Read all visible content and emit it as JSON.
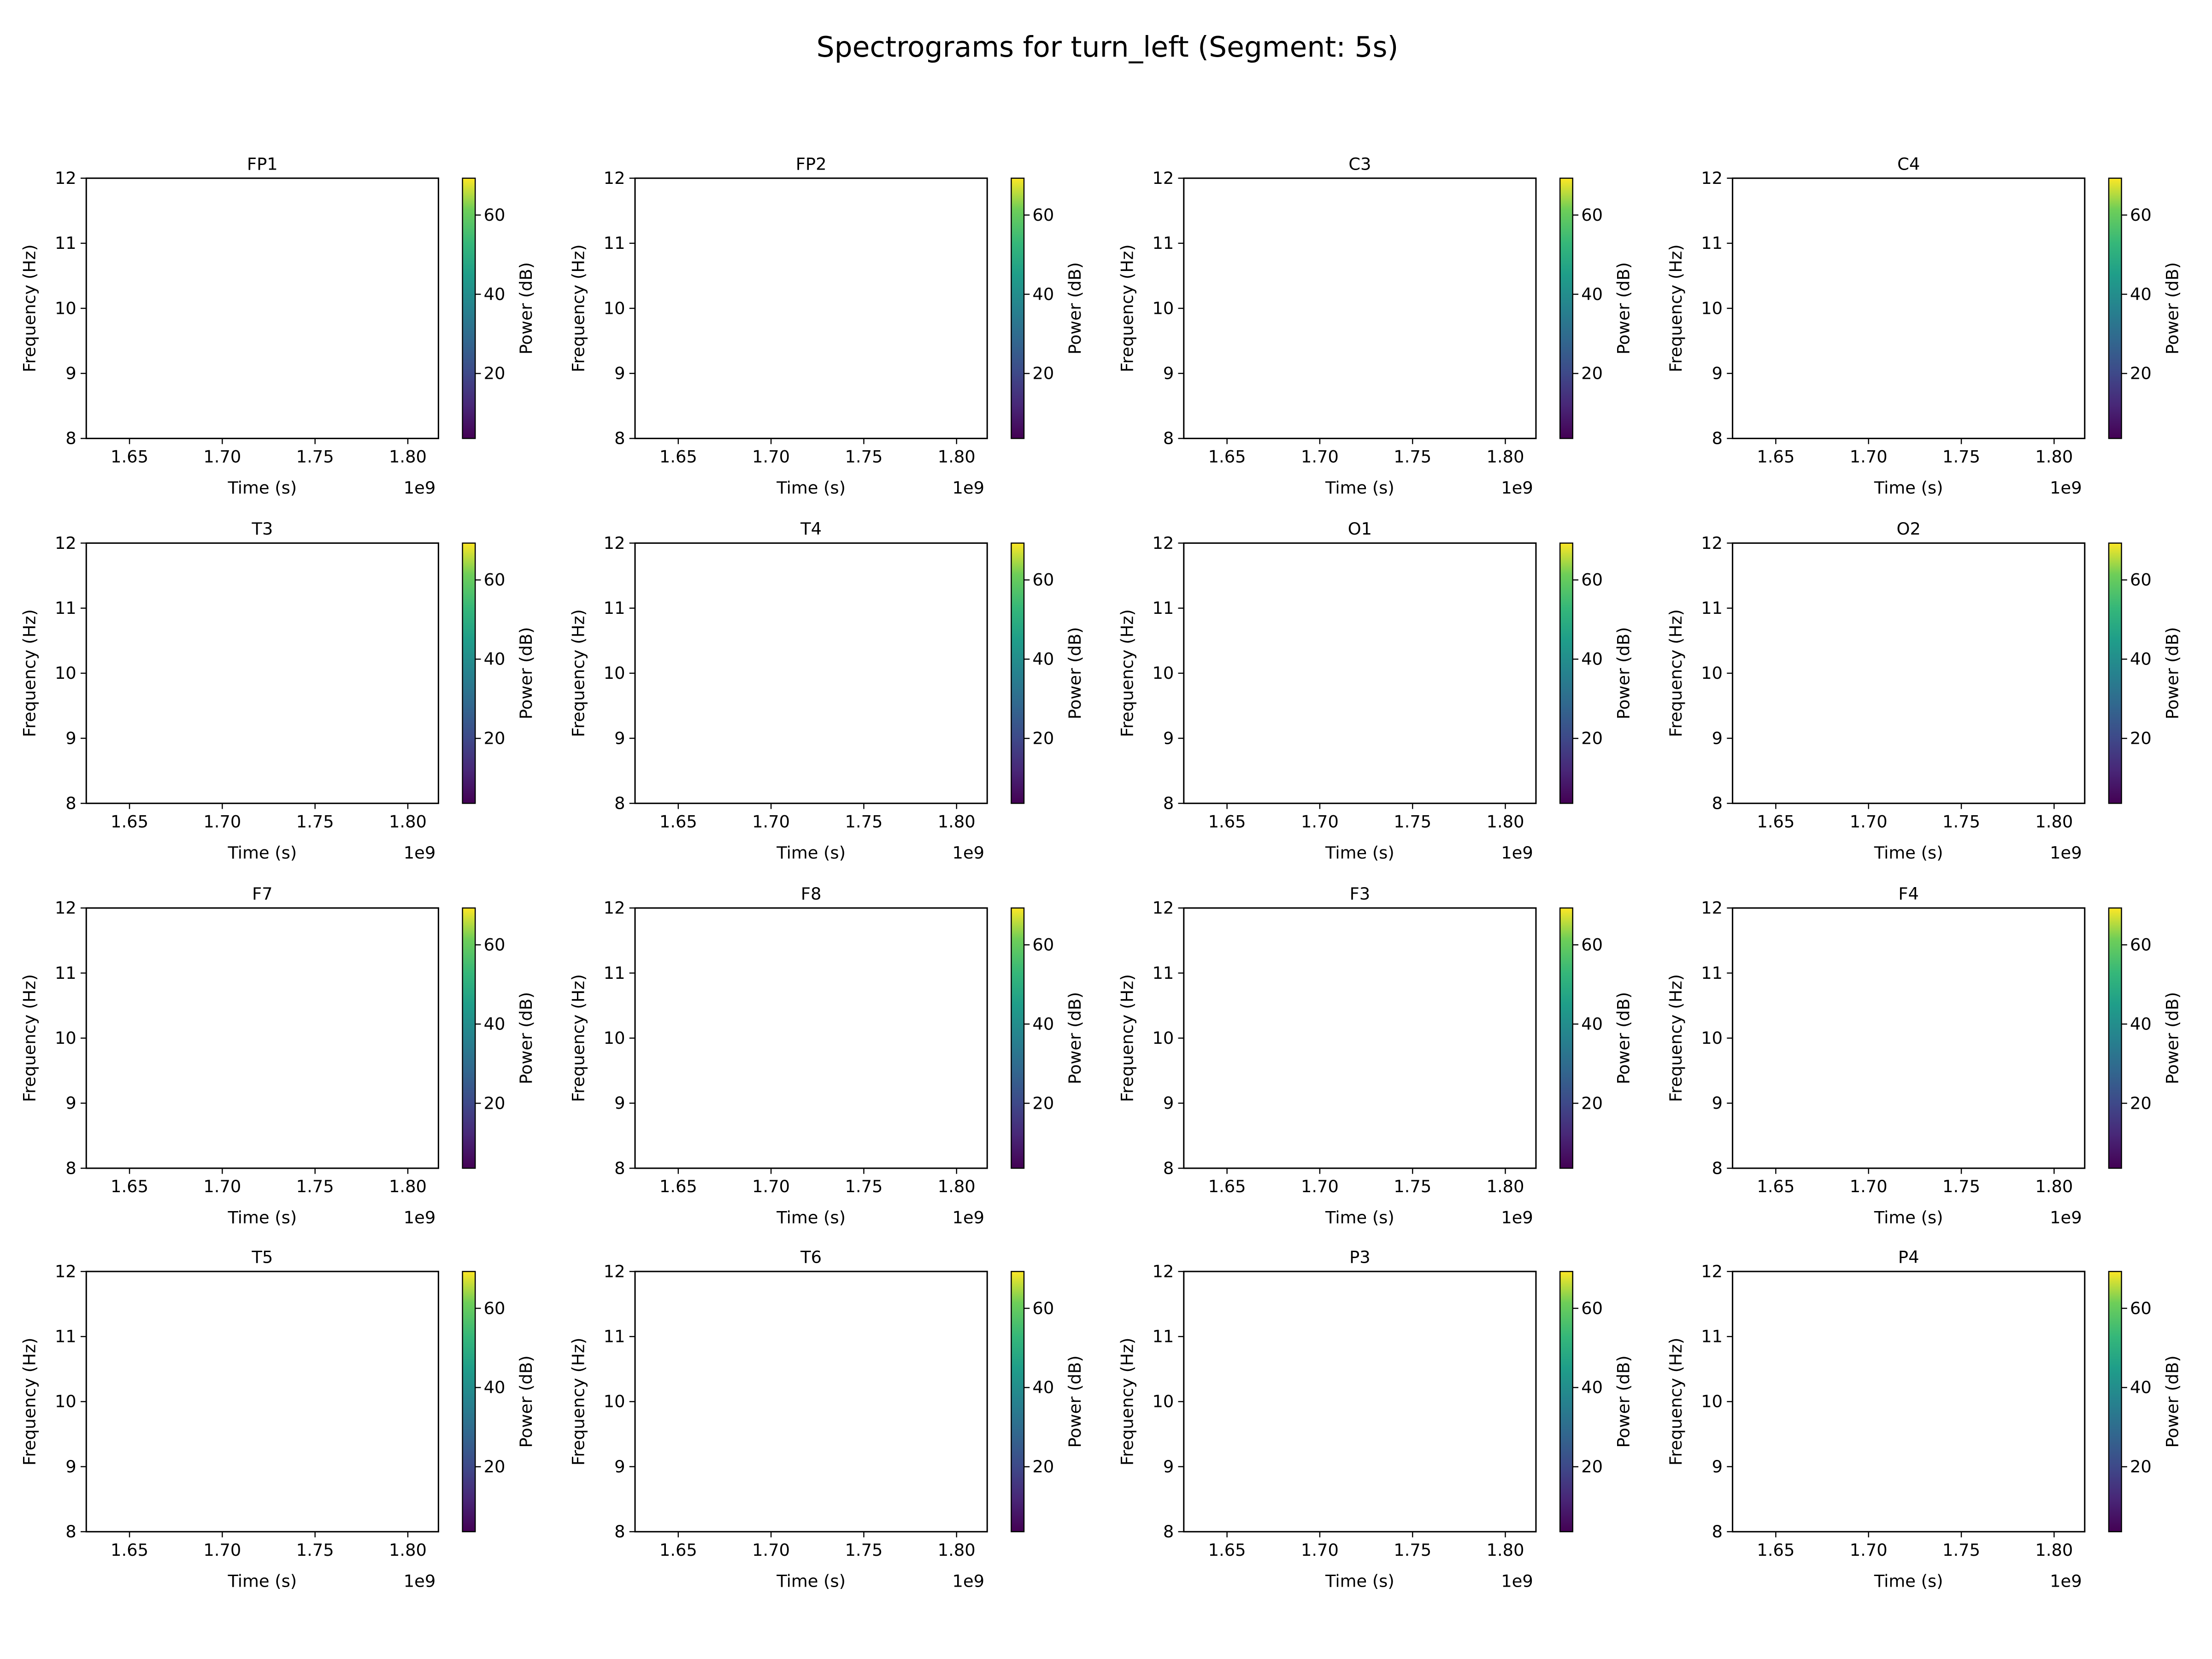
{
  "chart_data": {
    "type": "heatmap",
    "title": "Spectrograms for turn_left (Segment: 5s)",
    "layout": {
      "rows": 4,
      "cols": 4
    },
    "xlabel": "Time (s)",
    "ylabel": "Frequency (Hz)",
    "x_offset_label": "1e9",
    "xlim": [
      1.6267,
      1.8165
    ],
    "xticks": [
      1.65,
      1.7,
      1.75,
      1.8
    ],
    "xtick_labels": [
      "1.65",
      "1.70",
      "1.75",
      "1.80"
    ],
    "ylim": [
      8,
      12
    ],
    "yticks": [
      8,
      9,
      10,
      11,
      12
    ],
    "ytick_labels": [
      "8",
      "9",
      "10",
      "11",
      "12"
    ],
    "colorbar": {
      "label": "Power (dB)",
      "colormap": "viridis",
      "clim": [
        3.6,
        69.3
      ],
      "ticks": [
        20,
        40,
        60
      ],
      "tick_labels": [
        "20",
        "40",
        "60"
      ]
    },
    "grid": false,
    "subplots": [
      {
        "title": "FP1",
        "values": []
      },
      {
        "title": "FP2",
        "values": []
      },
      {
        "title": "C3",
        "values": []
      },
      {
        "title": "C4",
        "values": []
      },
      {
        "title": "T3",
        "values": []
      },
      {
        "title": "T4",
        "values": []
      },
      {
        "title": "O1",
        "values": []
      },
      {
        "title": "O2",
        "values": []
      },
      {
        "title": "F7",
        "values": []
      },
      {
        "title": "F8",
        "values": []
      },
      {
        "title": "F3",
        "values": []
      },
      {
        "title": "F4",
        "values": []
      },
      {
        "title": "T5",
        "values": []
      },
      {
        "title": "T6",
        "values": []
      },
      {
        "title": "P3",
        "values": []
      },
      {
        "title": "P4",
        "values": []
      }
    ]
  }
}
